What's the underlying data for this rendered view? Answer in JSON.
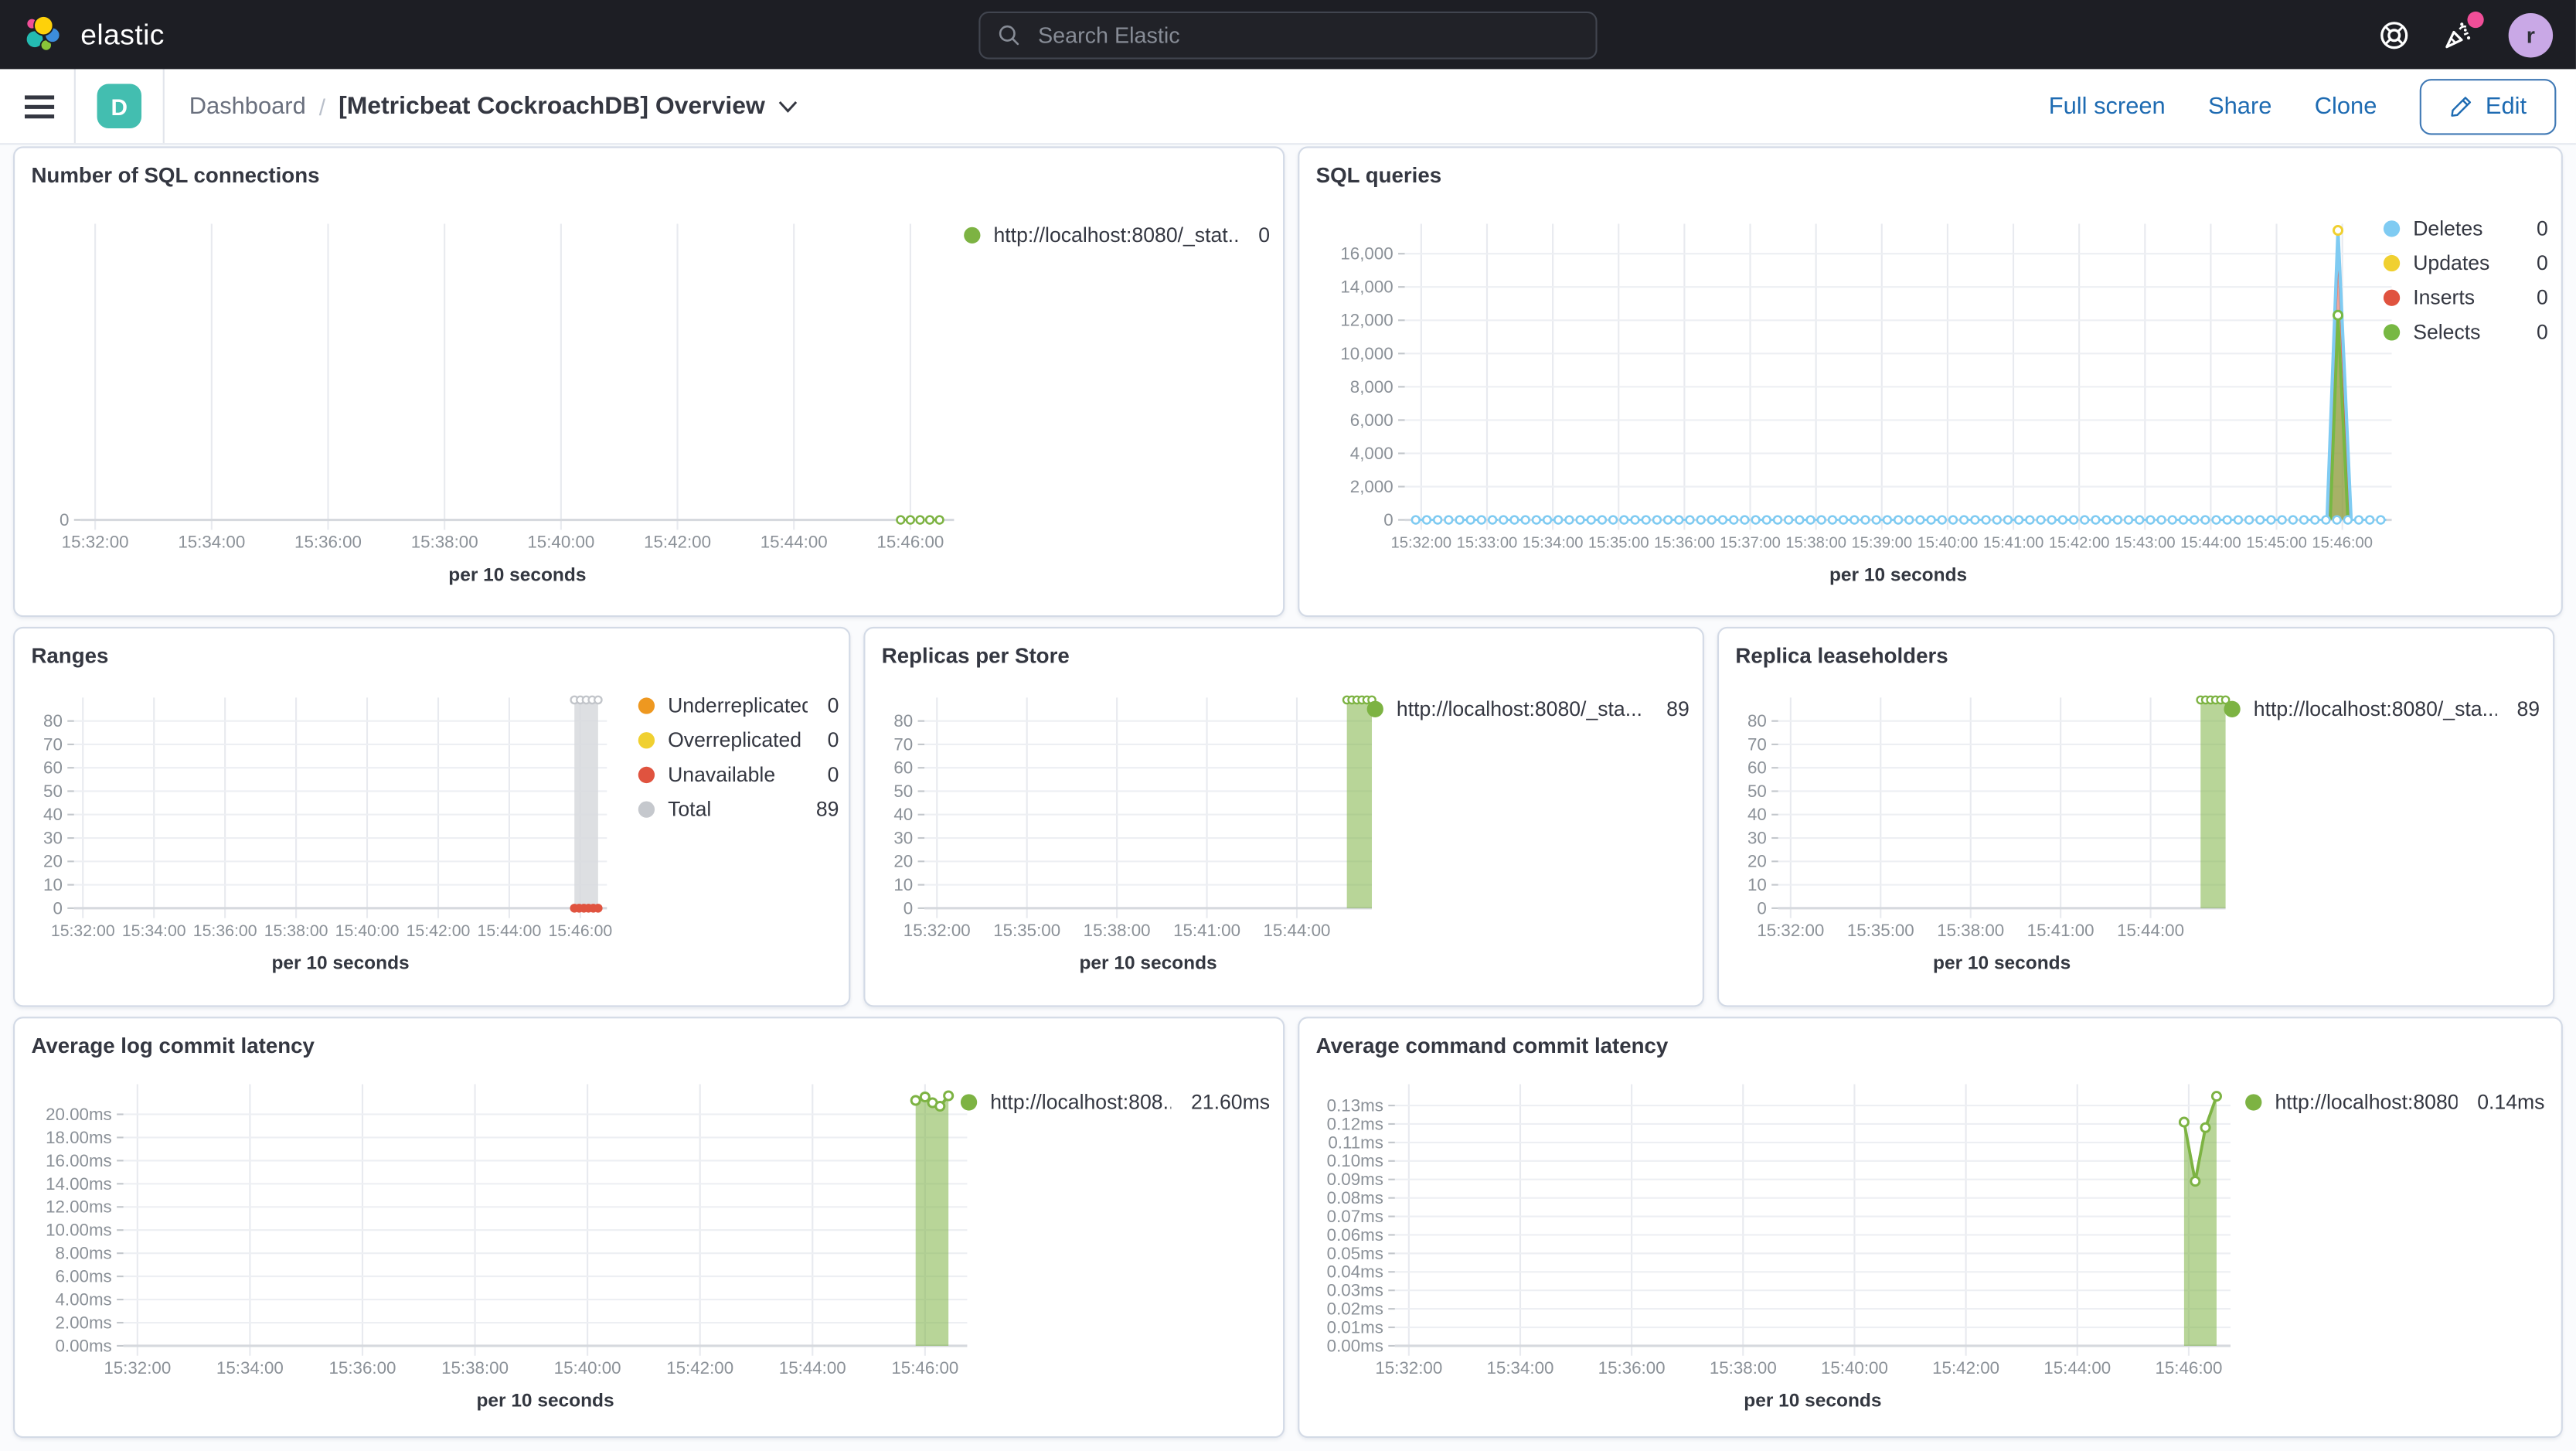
{
  "topbar": {
    "brand": "elastic",
    "search": {
      "placeholder": "Search Elastic"
    },
    "icons": {
      "search": "magnifier",
      "help": "life-ring",
      "news": "party-popper"
    },
    "avatar_initial": "r"
  },
  "toolbar": {
    "badge": "D",
    "breadcrumb": {
      "root": "Dashboard",
      "separator": "/",
      "current": "[Metricbeat CockroachDB] Overview"
    },
    "actions": {
      "full_screen": "Full screen",
      "share": "Share",
      "clone": "Clone",
      "edit": "Edit"
    }
  },
  "panels": [
    {
      "title": "Number of SQL connections",
      "legend": [
        {
          "label": "http://localhost:8080/_stat...",
          "value": "0",
          "color": "#7db343"
        }
      ],
      "chart_data": {
        "type": "line",
        "xlabel": "per 10 seconds",
        "x_domain": [
          "15:31:45",
          "15:46:45"
        ],
        "x_ticks": [
          "15:32:00",
          "15:34:00",
          "15:36:00",
          "15:38:00",
          "15:40:00",
          "15:42:00",
          "15:44:00",
          "15:46:00"
        ],
        "y_domain": [
          0,
          1
        ],
        "y_grid": false,
        "y_ticks": [
          {
            "label": "0",
            "value": 0
          }
        ],
        "series": [
          {
            "name": "http://localhost:8080/_stat...",
            "kind": "flatline",
            "color": "#7db343",
            "t0": "15:45:50",
            "t1": "15:46:30",
            "step": 10,
            "value": 0
          }
        ]
      }
    },
    {
      "title": "SQL queries",
      "legend": [
        {
          "label": "Deletes",
          "value": "0",
          "color": "#7fcbf2"
        },
        {
          "label": "Updates",
          "value": "0",
          "color": "#f0d030"
        },
        {
          "label": "Inserts",
          "value": "0",
          "color": "#e0533f"
        },
        {
          "label": "Selects",
          "value": "0",
          "color": "#77b843"
        }
      ],
      "chart_data": {
        "type": "line",
        "xlabel": "per 10 seconds",
        "x_domain": [
          "15:31:45",
          "15:46:45"
        ],
        "x_ticks": [
          "15:32:00",
          "15:33:00",
          "15:34:00",
          "15:35:00",
          "15:36:00",
          "15:37:00",
          "15:38:00",
          "15:39:00",
          "15:40:00",
          "15:41:00",
          "15:42:00",
          "15:43:00",
          "15:44:00",
          "15:45:00",
          "15:46:00"
        ],
        "y_domain": [
          0,
          17800
        ],
        "y_grid": true,
        "y_ticks": [
          {
            "label": "0",
            "value": 0
          },
          {
            "label": "2,000",
            "value": 2000
          },
          {
            "label": "4,000",
            "value": 4000
          },
          {
            "label": "6,000",
            "value": 6000
          },
          {
            "label": "8,000",
            "value": 8000
          },
          {
            "label": "10,000",
            "value": 10000
          },
          {
            "label": "12,000",
            "value": 12000
          },
          {
            "label": "14,000",
            "value": 14000
          },
          {
            "label": "16,000",
            "value": 16000
          }
        ],
        "series": [
          {
            "name": "Inserts",
            "kind": "area",
            "color": "#e0533f",
            "fill_opacity": 0.5,
            "points": [
              [
                "15:45:47",
                0
              ],
              [
                "15:45:56",
                17000
              ],
              [
                "15:46:07",
                0
              ]
            ]
          },
          {
            "name": "Selects",
            "kind": "area",
            "color": "#77b843",
            "fill_opacity": 0.6,
            "points": [
              [
                "15:45:49",
                0
              ],
              [
                "15:45:56",
                12300
              ],
              [
                "15:46:05",
                0
              ]
            ]
          },
          {
            "name": "Deletes-spike",
            "kind": "line",
            "color": "#7fcbf2",
            "points": [
              [
                "15:45:46",
                0
              ],
              [
                "15:45:56",
                17400
              ],
              [
                "15:46:08",
                0
              ]
            ]
          },
          {
            "name": "Deletes",
            "kind": "flatline",
            "color": "#7fcbf2",
            "t0": "15:31:55",
            "t1": "15:46:40",
            "step": 10,
            "value": 0
          },
          {
            "name": "Updates-peak",
            "kind": "point",
            "color": "#f0d030",
            "points": [
              [
                "15:45:56",
                17400
              ]
            ]
          },
          {
            "name": "Selects-peak",
            "kind": "point",
            "color": "#77b843",
            "points": [
              [
                "15:45:56",
                12300
              ]
            ]
          }
        ]
      }
    },
    {
      "title": "Ranges",
      "legend": [
        {
          "label": "Underreplicated",
          "value": "0",
          "color": "#ee9820"
        },
        {
          "label": "Overreplicated",
          "value": "0",
          "color": "#f0d030"
        },
        {
          "label": "Unavailable",
          "value": "0",
          "color": "#e0533f"
        },
        {
          "label": "Total",
          "value": "89",
          "color": "#c5c8cd"
        }
      ],
      "chart_data": {
        "type": "bar",
        "xlabel": "per 10 seconds",
        "x_domain": [
          "15:31:45",
          "15:46:45"
        ],
        "x_ticks": [
          "15:32:00",
          "15:34:00",
          "15:36:00",
          "15:38:00",
          "15:40:00",
          "15:42:00",
          "15:44:00",
          "15:46:00"
        ],
        "y_domain": [
          0,
          90
        ],
        "y_grid": true,
        "y_ticks": [
          {
            "label": "0",
            "value": 0
          },
          {
            "label": "10",
            "value": 10
          },
          {
            "label": "20",
            "value": 20
          },
          {
            "label": "30",
            "value": 30
          },
          {
            "label": "40",
            "value": 40
          },
          {
            "label": "50",
            "value": 50
          },
          {
            "label": "60",
            "value": 60
          },
          {
            "label": "70",
            "value": 70
          },
          {
            "label": "80",
            "value": 80
          }
        ],
        "series": [
          {
            "name": "Total",
            "kind": "vbar",
            "color": "#d7d9dd",
            "fill_opacity": 0.85,
            "t0": "15:45:50",
            "t1": "15:46:30",
            "value": 89,
            "marker_row": true,
            "marker_color": "#c2c5ca"
          },
          {
            "name": "Unavailable",
            "kind": "dots",
            "color": "#e0533f",
            "points": [
              [
                "15:45:50",
                0
              ],
              [
                "15:45:58",
                0
              ],
              [
                "15:46:06",
                0
              ],
              [
                "15:46:14",
                0
              ],
              [
                "15:46:22",
                0
              ],
              [
                "15:46:30",
                0
              ]
            ]
          }
        ]
      }
    },
    {
      "title": "Replicas per Store",
      "legend": [
        {
          "label": "http://localhost:8080/_sta...",
          "value": "89",
          "color": "#7db343"
        }
      ],
      "chart_data": {
        "type": "bar",
        "xlabel": "per 10 seconds",
        "x_domain": [
          "15:31:35",
          "15:46:30"
        ],
        "x_ticks": [
          "15:32:00",
          "15:35:00",
          "15:38:00",
          "15:41:00",
          "15:44:00"
        ],
        "y_domain": [
          0,
          90
        ],
        "y_grid": true,
        "y_ticks": [
          {
            "label": "0",
            "value": 0
          },
          {
            "label": "10",
            "value": 10
          },
          {
            "label": "20",
            "value": 20
          },
          {
            "label": "30",
            "value": 30
          },
          {
            "label": "40",
            "value": 40
          },
          {
            "label": "50",
            "value": 50
          },
          {
            "label": "60",
            "value": 60
          },
          {
            "label": "70",
            "value": 70
          },
          {
            "label": "80",
            "value": 80
          }
        ],
        "series": [
          {
            "name": "http://localhost:8080/_sta...",
            "kind": "vbar",
            "color": "#7db343",
            "fill_opacity": 0.55,
            "t0": "15:45:40",
            "t1": "15:46:30",
            "value": 89,
            "marker_row": true
          }
        ]
      }
    },
    {
      "title": "Replica leaseholders",
      "legend": [
        {
          "label": "http://localhost:8080/_sta...",
          "value": "89",
          "color": "#7db343"
        }
      ],
      "chart_data": {
        "type": "bar",
        "xlabel": "per 10 seconds",
        "x_domain": [
          "15:31:35",
          "15:46:30"
        ],
        "x_ticks": [
          "15:32:00",
          "15:35:00",
          "15:38:00",
          "15:41:00",
          "15:44:00"
        ],
        "y_domain": [
          0,
          90
        ],
        "y_grid": true,
        "y_ticks": [
          {
            "label": "0",
            "value": 0
          },
          {
            "label": "10",
            "value": 10
          },
          {
            "label": "20",
            "value": 20
          },
          {
            "label": "30",
            "value": 30
          },
          {
            "label": "40",
            "value": 40
          },
          {
            "label": "50",
            "value": 50
          },
          {
            "label": "60",
            "value": 60
          },
          {
            "label": "70",
            "value": 70
          },
          {
            "label": "80",
            "value": 80
          }
        ],
        "series": [
          {
            "name": "http://localhost:8080/_sta...",
            "kind": "vbar",
            "color": "#7db343",
            "fill_opacity": 0.55,
            "t0": "15:45:40",
            "t1": "15:46:30",
            "value": 89,
            "marker_row": true
          }
        ]
      }
    },
    {
      "title": "Average log commit latency",
      "legend": [
        {
          "label": "http://localhost:808...",
          "value": "21.60ms",
          "color": "#7db343"
        }
      ],
      "chart_data": {
        "type": "area",
        "xlabel": "per 10 seconds",
        "x_domain": [
          "15:31:45",
          "15:46:45"
        ],
        "x_ticks": [
          "15:32:00",
          "15:34:00",
          "15:36:00",
          "15:38:00",
          "15:40:00",
          "15:42:00",
          "15:44:00",
          "15:46:00"
        ],
        "y_domain": [
          0,
          22.6
        ],
        "y_grid": true,
        "y_ticks": [
          {
            "label": "0.00ms",
            "value": 0
          },
          {
            "label": "2.00ms",
            "value": 2
          },
          {
            "label": "4.00ms",
            "value": 4
          },
          {
            "label": "6.00ms",
            "value": 6
          },
          {
            "label": "8.00ms",
            "value": 8
          },
          {
            "label": "10.00ms",
            "value": 10
          },
          {
            "label": "12.00ms",
            "value": 12
          },
          {
            "label": "14.00ms",
            "value": 14
          },
          {
            "label": "16.00ms",
            "value": 16
          },
          {
            "label": "18.00ms",
            "value": 18
          },
          {
            "label": "20.00ms",
            "value": 20
          }
        ],
        "series": [
          {
            "name": "http://localhost:808...",
            "kind": "area",
            "color": "#7db343",
            "fill_opacity": 0.55,
            "markers": true,
            "points": [
              [
                "15:45:50",
                21.2
              ],
              [
                "15:46:00",
                21.5
              ],
              [
                "15:46:08",
                21.0
              ],
              [
                "15:46:16",
                20.7
              ],
              [
                "15:46:25",
                21.6
              ]
            ]
          }
        ]
      }
    },
    {
      "title": "Average command commit latency",
      "legend": [
        {
          "label": "http://localhost:8080...",
          "value": "0.14ms",
          "color": "#7db343"
        }
      ],
      "chart_data": {
        "type": "area",
        "xlabel": "per 10 seconds",
        "x_domain": [
          "15:31:45",
          "15:46:45"
        ],
        "x_ticks": [
          "15:32:00",
          "15:34:00",
          "15:36:00",
          "15:38:00",
          "15:40:00",
          "15:42:00",
          "15:44:00",
          "15:46:00"
        ],
        "y_domain": [
          0,
          0.1415
        ],
        "y_grid": true,
        "y_ticks": [
          {
            "label": "0.00ms",
            "value": 0
          },
          {
            "label": "0.01ms",
            "value": 0.01
          },
          {
            "label": "0.02ms",
            "value": 0.02
          },
          {
            "label": "0.03ms",
            "value": 0.03
          },
          {
            "label": "0.04ms",
            "value": 0.04
          },
          {
            "label": "0.05ms",
            "value": 0.05
          },
          {
            "label": "0.06ms",
            "value": 0.06
          },
          {
            "label": "0.07ms",
            "value": 0.07
          },
          {
            "label": "0.08ms",
            "value": 0.08
          },
          {
            "label": "0.09ms",
            "value": 0.09
          },
          {
            "label": "0.10ms",
            "value": 0.1
          },
          {
            "label": "0.11ms",
            "value": 0.11
          },
          {
            "label": "0.12ms",
            "value": 0.12
          },
          {
            "label": "0.13ms",
            "value": 0.13
          }
        ],
        "series": [
          {
            "name": "http://localhost:8080...",
            "kind": "area",
            "color": "#7db343",
            "fill_opacity": 0.55,
            "markers": true,
            "points": [
              [
                "15:45:55",
                0.121
              ],
              [
                "15:46:07",
                0.089
              ],
              [
                "15:46:18",
                0.118
              ],
              [
                "15:46:30",
                0.135
              ]
            ]
          }
        ]
      }
    }
  ]
}
